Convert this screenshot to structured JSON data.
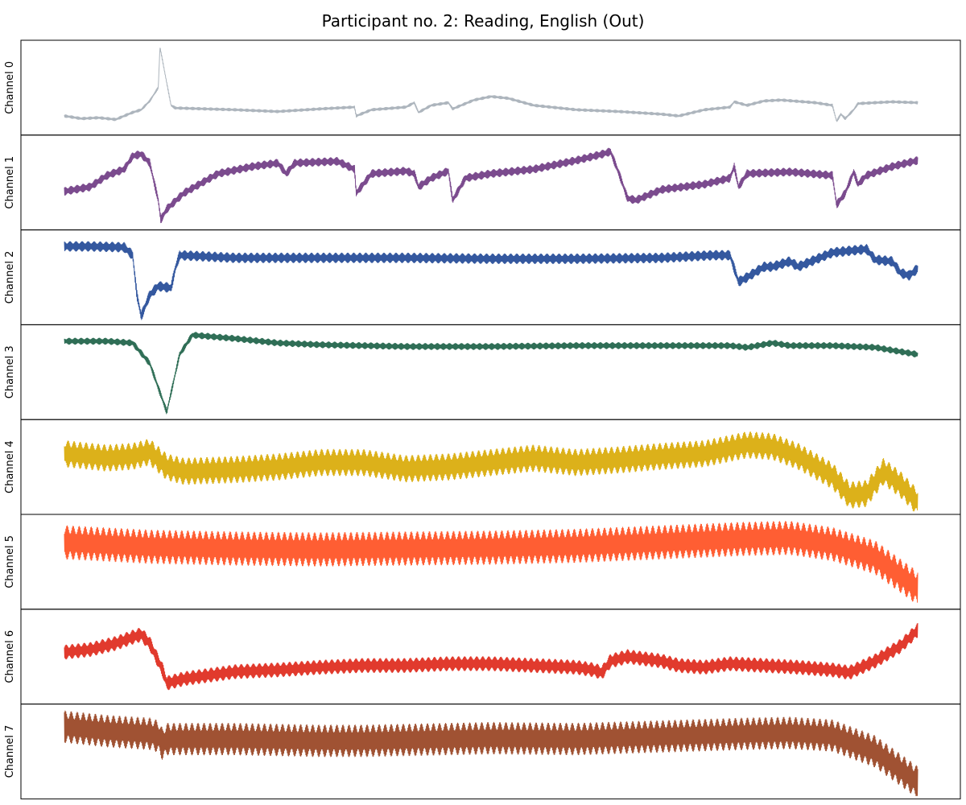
{
  "chart_data": {
    "type": "line",
    "title": "Participant no. 2: Reading, English (Out)",
    "xlabel": "",
    "ylabel": "",
    "grid": false,
    "legend": "none",
    "x_range": [
      0,
      1
    ],
    "series": [
      {
        "label": "Channel 0",
        "color": "#adb5bd",
        "ylim": [
          0,
          1
        ],
        "amplitude": 0.03,
        "curve": [
          [
            0,
            0.18
          ],
          [
            0.02,
            0.15
          ],
          [
            0.04,
            0.16
          ],
          [
            0.06,
            0.14
          ],
          [
            0.08,
            0.22
          ],
          [
            0.09,
            0.25
          ],
          [
            0.1,
            0.35
          ],
          [
            0.11,
            0.5
          ],
          [
            0.112,
            0.96
          ],
          [
            0.12,
            0.55
          ],
          [
            0.125,
            0.3
          ],
          [
            0.13,
            0.27
          ],
          [
            0.2,
            0.25
          ],
          [
            0.25,
            0.23
          ],
          [
            0.3,
            0.26
          ],
          [
            0.34,
            0.28
          ],
          [
            0.342,
            0.18
          ],
          [
            0.36,
            0.25
          ],
          [
            0.4,
            0.28
          ],
          [
            0.41,
            0.33
          ],
          [
            0.415,
            0.22
          ],
          [
            0.43,
            0.3
          ],
          [
            0.45,
            0.33
          ],
          [
            0.455,
            0.26
          ],
          [
            0.48,
            0.36
          ],
          [
            0.49,
            0.38
          ],
          [
            0.5,
            0.4
          ],
          [
            0.52,
            0.38
          ],
          [
            0.55,
            0.3
          ],
          [
            0.6,
            0.25
          ],
          [
            0.65,
            0.23
          ],
          [
            0.7,
            0.2
          ],
          [
            0.72,
            0.18
          ],
          [
            0.75,
            0.25
          ],
          [
            0.78,
            0.28
          ],
          [
            0.785,
            0.34
          ],
          [
            0.8,
            0.3
          ],
          [
            0.82,
            0.35
          ],
          [
            0.84,
            0.36
          ],
          [
            0.88,
            0.33
          ],
          [
            0.9,
            0.3
          ],
          [
            0.905,
            0.12
          ],
          [
            0.91,
            0.2
          ],
          [
            0.915,
            0.15
          ],
          [
            0.925,
            0.25
          ],
          [
            0.93,
            0.32
          ],
          [
            0.95,
            0.33
          ],
          [
            0.97,
            0.34
          ],
          [
            1,
            0.33
          ]
        ]
      },
      {
        "label": "Channel 1",
        "color": "#7b4b8e",
        "ylim": [
          0,
          1
        ],
        "amplitude": 0.09,
        "curve": [
          [
            0,
            0.4
          ],
          [
            0.03,
            0.45
          ],
          [
            0.05,
            0.58
          ],
          [
            0.07,
            0.65
          ],
          [
            0.08,
            0.8
          ],
          [
            0.09,
            0.82
          ],
          [
            0.1,
            0.72
          ],
          [
            0.11,
            0.3
          ],
          [
            0.113,
            0.08
          ],
          [
            0.12,
            0.2
          ],
          [
            0.14,
            0.38
          ],
          [
            0.18,
            0.6
          ],
          [
            0.22,
            0.68
          ],
          [
            0.25,
            0.72
          ],
          [
            0.26,
            0.6
          ],
          [
            0.27,
            0.72
          ],
          [
            0.32,
            0.74
          ],
          [
            0.34,
            0.65
          ],
          [
            0.342,
            0.38
          ],
          [
            0.36,
            0.6
          ],
          [
            0.4,
            0.63
          ],
          [
            0.41,
            0.6
          ],
          [
            0.415,
            0.45
          ],
          [
            0.43,
            0.55
          ],
          [
            0.45,
            0.63
          ],
          [
            0.455,
            0.3
          ],
          [
            0.47,
            0.55
          ],
          [
            0.5,
            0.6
          ],
          [
            0.55,
            0.65
          ],
          [
            0.6,
            0.75
          ],
          [
            0.63,
            0.82
          ],
          [
            0.64,
            0.85
          ],
          [
            0.65,
            0.6
          ],
          [
            0.66,
            0.32
          ],
          [
            0.67,
            0.3
          ],
          [
            0.7,
            0.42
          ],
          [
            0.75,
            0.48
          ],
          [
            0.78,
            0.55
          ],
          [
            0.785,
            0.68
          ],
          [
            0.79,
            0.45
          ],
          [
            0.8,
            0.6
          ],
          [
            0.85,
            0.62
          ],
          [
            0.9,
            0.58
          ],
          [
            0.905,
            0.25
          ],
          [
            0.915,
            0.38
          ],
          [
            0.925,
            0.62
          ],
          [
            0.93,
            0.48
          ],
          [
            0.94,
            0.58
          ],
          [
            0.97,
            0.68
          ],
          [
            1,
            0.75
          ]
        ]
      },
      {
        "label": "Channel 2",
        "color": "#34589f",
        "ylim": [
          0,
          1
        ],
        "amplitude": 0.11,
        "curve": [
          [
            0,
            0.85
          ],
          [
            0.03,
            0.85
          ],
          [
            0.07,
            0.84
          ],
          [
            0.08,
            0.75
          ],
          [
            0.085,
            0.3
          ],
          [
            0.09,
            0.06
          ],
          [
            0.1,
            0.3
          ],
          [
            0.11,
            0.4
          ],
          [
            0.125,
            0.38
          ],
          [
            0.13,
            0.6
          ],
          [
            0.135,
            0.75
          ],
          [
            0.2,
            0.72
          ],
          [
            0.3,
            0.72
          ],
          [
            0.4,
            0.72
          ],
          [
            0.5,
            0.71
          ],
          [
            0.6,
            0.71
          ],
          [
            0.7,
            0.72
          ],
          [
            0.76,
            0.75
          ],
          [
            0.78,
            0.75
          ],
          [
            0.79,
            0.45
          ],
          [
            0.8,
            0.5
          ],
          [
            0.82,
            0.62
          ],
          [
            0.83,
            0.62
          ],
          [
            0.85,
            0.68
          ],
          [
            0.86,
            0.62
          ],
          [
            0.88,
            0.7
          ],
          [
            0.9,
            0.78
          ],
          [
            0.94,
            0.82
          ],
          [
            0.95,
            0.7
          ],
          [
            0.97,
            0.68
          ],
          [
            0.98,
            0.55
          ],
          [
            0.99,
            0.52
          ],
          [
            1,
            0.6
          ]
        ]
      },
      {
        "label": "Channel 3",
        "color": "#2f6e56",
        "ylim": [
          0,
          1
        ],
        "amplitude": 0.07,
        "curve": [
          [
            0,
            0.85
          ],
          [
            0.05,
            0.85
          ],
          [
            0.08,
            0.83
          ],
          [
            0.1,
            0.6
          ],
          [
            0.12,
            0.05
          ],
          [
            0.135,
            0.7
          ],
          [
            0.15,
            0.92
          ],
          [
            0.2,
            0.88
          ],
          [
            0.25,
            0.83
          ],
          [
            0.3,
            0.81
          ],
          [
            0.4,
            0.79
          ],
          [
            0.5,
            0.79
          ],
          [
            0.6,
            0.8
          ],
          [
            0.7,
            0.8
          ],
          [
            0.78,
            0.8
          ],
          [
            0.8,
            0.78
          ],
          [
            0.83,
            0.83
          ],
          [
            0.85,
            0.8
          ],
          [
            0.9,
            0.8
          ],
          [
            0.95,
            0.78
          ],
          [
            1,
            0.7
          ]
        ]
      },
      {
        "label": "Channel 4",
        "color": "#dcb11a",
        "ylim": [
          0,
          1
        ],
        "amplitude": 0.3,
        "curve": [
          [
            0,
            0.65
          ],
          [
            0.05,
            0.6
          ],
          [
            0.08,
            0.62
          ],
          [
            0.1,
            0.67
          ],
          [
            0.12,
            0.5
          ],
          [
            0.14,
            0.45
          ],
          [
            0.2,
            0.47
          ],
          [
            0.25,
            0.5
          ],
          [
            0.3,
            0.55
          ],
          [
            0.35,
            0.55
          ],
          [
            0.4,
            0.48
          ],
          [
            0.45,
            0.5
          ],
          [
            0.5,
            0.55
          ],
          [
            0.55,
            0.6
          ],
          [
            0.6,
            0.55
          ],
          [
            0.65,
            0.58
          ],
          [
            0.7,
            0.62
          ],
          [
            0.75,
            0.65
          ],
          [
            0.8,
            0.75
          ],
          [
            0.83,
            0.73
          ],
          [
            0.86,
            0.62
          ],
          [
            0.9,
            0.4
          ],
          [
            0.92,
            0.18
          ],
          [
            0.94,
            0.2
          ],
          [
            0.96,
            0.45
          ],
          [
            0.98,
            0.3
          ],
          [
            1,
            0.1
          ]
        ]
      },
      {
        "label": "Channel 5",
        "color": "#ff5e33",
        "ylim": [
          0,
          1
        ],
        "amplitude": 0.38,
        "curve": [
          [
            0,
            0.72
          ],
          [
            0.1,
            0.67
          ],
          [
            0.2,
            0.65
          ],
          [
            0.3,
            0.64
          ],
          [
            0.4,
            0.65
          ],
          [
            0.5,
            0.66
          ],
          [
            0.6,
            0.68
          ],
          [
            0.7,
            0.72
          ],
          [
            0.8,
            0.76
          ],
          [
            0.85,
            0.77
          ],
          [
            0.9,
            0.7
          ],
          [
            0.95,
            0.55
          ],
          [
            1,
            0.2
          ]
        ]
      },
      {
        "label": "Channel 6",
        "color": "#e13a2d",
        "ylim": [
          0,
          1
        ],
        "amplitude": 0.16,
        "curve": [
          [
            0,
            0.55
          ],
          [
            0.03,
            0.58
          ],
          [
            0.06,
            0.65
          ],
          [
            0.08,
            0.72
          ],
          [
            0.09,
            0.75
          ],
          [
            0.1,
            0.65
          ],
          [
            0.115,
            0.35
          ],
          [
            0.12,
            0.2
          ],
          [
            0.14,
            0.25
          ],
          [
            0.2,
            0.33
          ],
          [
            0.25,
            0.35
          ],
          [
            0.3,
            0.38
          ],
          [
            0.35,
            0.4
          ],
          [
            0.4,
            0.4
          ],
          [
            0.45,
            0.42
          ],
          [
            0.5,
            0.42
          ],
          [
            0.55,
            0.4
          ],
          [
            0.6,
            0.38
          ],
          [
            0.62,
            0.35
          ],
          [
            0.63,
            0.32
          ],
          [
            0.64,
            0.45
          ],
          [
            0.66,
            0.5
          ],
          [
            0.7,
            0.45
          ],
          [
            0.72,
            0.4
          ],
          [
            0.75,
            0.38
          ],
          [
            0.78,
            0.42
          ],
          [
            0.82,
            0.4
          ],
          [
            0.86,
            0.38
          ],
          [
            0.9,
            0.35
          ],
          [
            0.92,
            0.32
          ],
          [
            0.95,
            0.45
          ],
          [
            0.98,
            0.62
          ],
          [
            1,
            0.8
          ]
        ]
      },
      {
        "label": "Channel 7",
        "color": "#a05233",
        "ylim": [
          0,
          1
        ],
        "amplitude": 0.36,
        "curve": [
          [
            0,
            0.78
          ],
          [
            0.05,
            0.73
          ],
          [
            0.1,
            0.7
          ],
          [
            0.11,
            0.67
          ],
          [
            0.115,
            0.58
          ],
          [
            0.12,
            0.64
          ],
          [
            0.2,
            0.64
          ],
          [
            0.3,
            0.62
          ],
          [
            0.35,
            0.62
          ],
          [
            0.4,
            0.63
          ],
          [
            0.5,
            0.65
          ],
          [
            0.6,
            0.64
          ],
          [
            0.7,
            0.67
          ],
          [
            0.8,
            0.7
          ],
          [
            0.85,
            0.71
          ],
          [
            0.9,
            0.68
          ],
          [
            0.95,
            0.5
          ],
          [
            1,
            0.15
          ]
        ]
      }
    ]
  }
}
